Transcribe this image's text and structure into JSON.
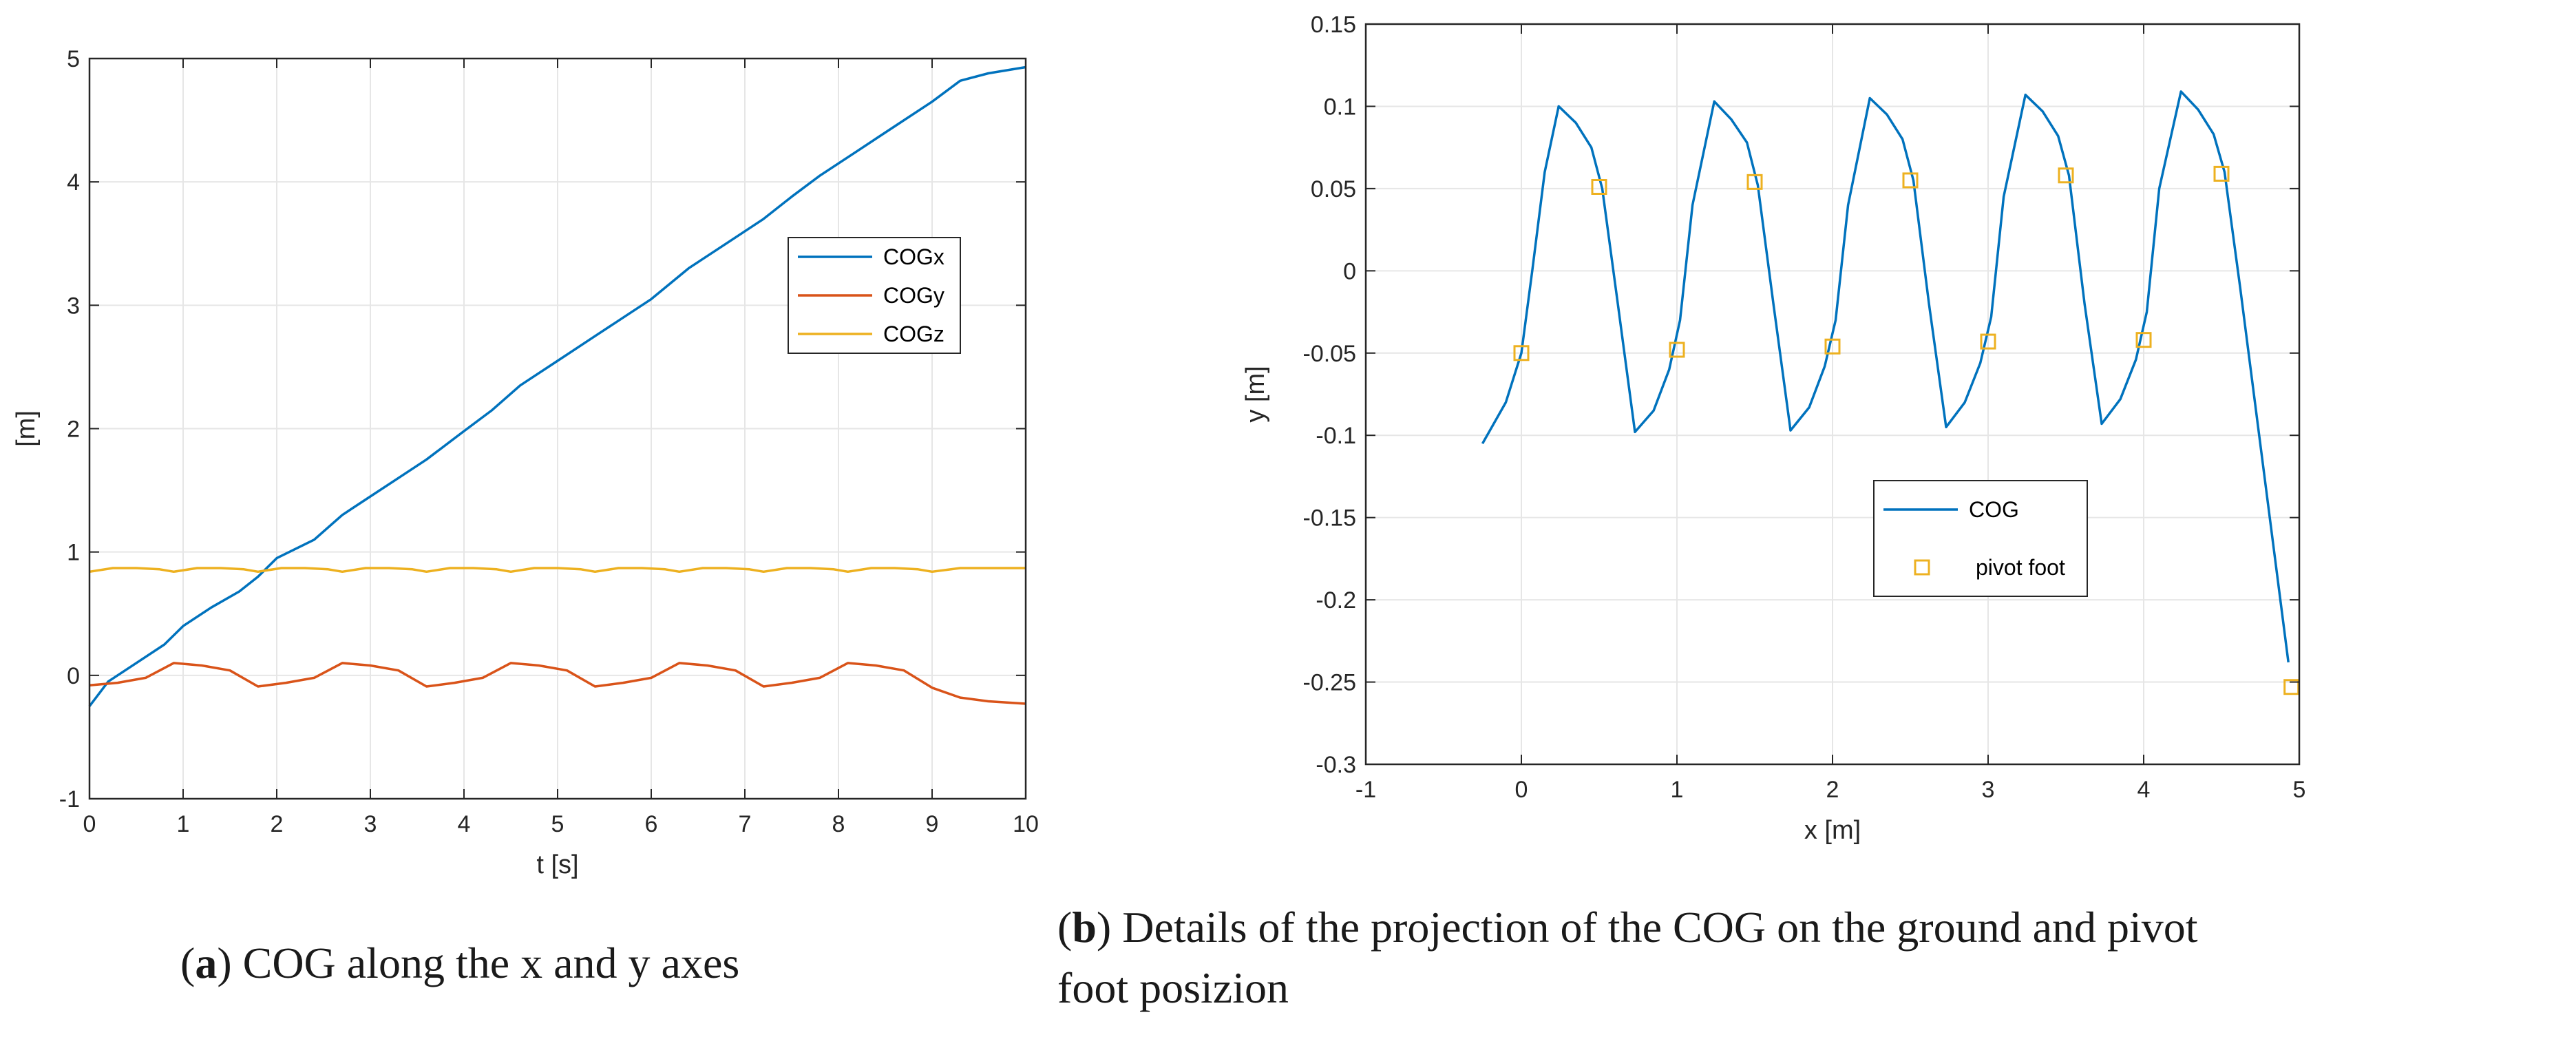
{
  "colors": {
    "series1": "#0072BD",
    "series2": "#D95319",
    "series3": "#EDB120",
    "grid": "#e6e6e6",
    "axis": "#262626"
  },
  "captions": {
    "a": {
      "letter": "a",
      "text": ") COG along the x and y axes"
    },
    "b": {
      "letter": "b",
      "text_line1": ") Details of the projection of the COG on the ground and pivot",
      "text_line2": "foot posizion"
    }
  },
  "chart_data": [
    {
      "id": "a",
      "type": "line",
      "xlabel": "t [s]",
      "ylabel": "[m]",
      "xlim": [
        0,
        10
      ],
      "ylim": [
        -1,
        5
      ],
      "xticks": [
        0,
        1,
        2,
        3,
        4,
        5,
        6,
        7,
        8,
        9,
        10
      ],
      "yticks": [
        -1,
        0,
        1,
        2,
        3,
        4,
        5
      ],
      "grid": true,
      "legend_position": "center-right",
      "series": [
        {
          "name": "COGx",
          "color": "#0072BD",
          "x": [
            0,
            0.2,
            0.5,
            0.8,
            1.0,
            1.3,
            1.6,
            1.8,
            2.0,
            2.4,
            2.7,
            3.0,
            3.3,
            3.6,
            4.0,
            4.3,
            4.6,
            5.0,
            5.4,
            5.8,
            6.0,
            6.4,
            6.8,
            7.2,
            7.5,
            7.8,
            8.2,
            8.6,
            9.0,
            9.3,
            9.6,
            10.0
          ],
          "values": [
            -0.25,
            -0.05,
            0.1,
            0.25,
            0.4,
            0.55,
            0.68,
            0.8,
            0.95,
            1.1,
            1.3,
            1.45,
            1.6,
            1.75,
            1.98,
            2.15,
            2.35,
            2.55,
            2.75,
            2.95,
            3.05,
            3.3,
            3.5,
            3.7,
            3.88,
            4.05,
            4.25,
            4.45,
            4.65,
            4.82,
            4.88,
            4.93
          ]
        },
        {
          "name": "COGy",
          "color": "#D95319",
          "x": [
            0,
            0.3,
            0.6,
            0.9,
            1.2,
            1.5,
            1.8,
            2.1,
            2.4,
            2.7,
            3.0,
            3.3,
            3.6,
            3.9,
            4.2,
            4.5,
            4.8,
            5.1,
            5.4,
            5.7,
            6.0,
            6.3,
            6.6,
            6.9,
            7.2,
            7.5,
            7.8,
            8.1,
            8.4,
            8.7,
            9.0,
            9.3,
            9.6,
            10.0
          ],
          "values": [
            -0.08,
            -0.06,
            -0.02,
            0.1,
            0.08,
            0.04,
            -0.09,
            -0.06,
            -0.02,
            0.1,
            0.08,
            0.04,
            -0.09,
            -0.06,
            -0.02,
            0.1,
            0.08,
            0.04,
            -0.09,
            -0.06,
            -0.02,
            0.1,
            0.08,
            0.04,
            -0.09,
            -0.06,
            -0.02,
            0.1,
            0.08,
            0.04,
            -0.1,
            -0.18,
            -0.21,
            -0.23
          ]
        },
        {
          "name": "COGz",
          "color": "#EDB120",
          "x": [
            0,
            0.25,
            0.5,
            0.75,
            0.9,
            1.15,
            1.4,
            1.65,
            1.8,
            2.05,
            2.3,
            2.55,
            2.7,
            2.95,
            3.2,
            3.45,
            3.6,
            3.85,
            4.1,
            4.35,
            4.5,
            4.75,
            5.0,
            5.25,
            5.4,
            5.65,
            5.9,
            6.15,
            6.3,
            6.55,
            6.8,
            7.05,
            7.2,
            7.45,
            7.7,
            7.95,
            8.1,
            8.35,
            8.6,
            8.85,
            9.0,
            9.3,
            9.6,
            10.0
          ],
          "values": [
            0.84,
            0.87,
            0.87,
            0.86,
            0.84,
            0.87,
            0.87,
            0.86,
            0.84,
            0.87,
            0.87,
            0.86,
            0.84,
            0.87,
            0.87,
            0.86,
            0.84,
            0.87,
            0.87,
            0.86,
            0.84,
            0.87,
            0.87,
            0.86,
            0.84,
            0.87,
            0.87,
            0.86,
            0.84,
            0.87,
            0.87,
            0.86,
            0.84,
            0.87,
            0.87,
            0.86,
            0.84,
            0.87,
            0.87,
            0.86,
            0.84,
            0.87,
            0.87,
            0.87
          ]
        }
      ]
    },
    {
      "id": "b",
      "type": "line",
      "xlabel": "x [m]",
      "ylabel": "y [m]",
      "xlim": [
        -1,
        5
      ],
      "ylim": [
        -0.3,
        0.15
      ],
      "xticks": [
        -1,
        0,
        1,
        2,
        3,
        4,
        5
      ],
      "yticks": [
        -0.3,
        -0.25,
        -0.2,
        -0.15,
        -0.1,
        -0.05,
        0,
        0.05,
        0.1,
        0.15
      ],
      "grid": true,
      "legend_position": "bottom-center",
      "series": [
        {
          "name": "COG",
          "color": "#0072BD",
          "style": "line",
          "x": [
            -0.25,
            -0.1,
            0.0,
            0.07,
            0.15,
            0.24,
            0.35,
            0.45,
            0.52,
            0.62,
            0.73,
            0.85,
            0.95,
            1.02,
            1.1,
            1.24,
            1.35,
            1.45,
            1.52,
            1.62,
            1.73,
            1.85,
            1.95,
            2.02,
            2.1,
            2.24,
            2.35,
            2.45,
            2.52,
            2.62,
            2.73,
            2.85,
            2.95,
            3.02,
            3.1,
            3.24,
            3.35,
            3.45,
            3.52,
            3.62,
            3.73,
            3.85,
            3.95,
            4.02,
            4.1,
            4.24,
            4.35,
            4.45,
            4.52,
            4.62,
            4.93
          ],
          "values": [
            -0.105,
            -0.08,
            -0.05,
            0.0,
            0.06,
            0.1,
            0.09,
            0.075,
            0.05,
            -0.02,
            -0.098,
            -0.085,
            -0.06,
            -0.03,
            0.04,
            0.103,
            0.092,
            0.078,
            0.052,
            -0.02,
            -0.097,
            -0.083,
            -0.058,
            -0.03,
            0.04,
            0.105,
            0.095,
            0.08,
            0.055,
            -0.02,
            -0.095,
            -0.08,
            -0.056,
            -0.028,
            0.045,
            0.107,
            0.097,
            0.082,
            0.058,
            -0.02,
            -0.093,
            -0.078,
            -0.054,
            -0.025,
            0.05,
            0.109,
            0.098,
            0.083,
            0.06,
            -0.01,
            -0.238
          ]
        },
        {
          "name": "pivot foot",
          "color": "#EDB120",
          "style": "marker-square",
          "x": [
            0.0,
            0.5,
            1.0,
            1.5,
            2.0,
            2.5,
            3.0,
            3.5,
            4.0,
            4.5,
            4.95
          ],
          "values": [
            -0.05,
            0.051,
            -0.048,
            0.054,
            -0.046,
            0.055,
            -0.043,
            0.058,
            -0.042,
            0.059,
            -0.253
          ]
        }
      ]
    }
  ]
}
